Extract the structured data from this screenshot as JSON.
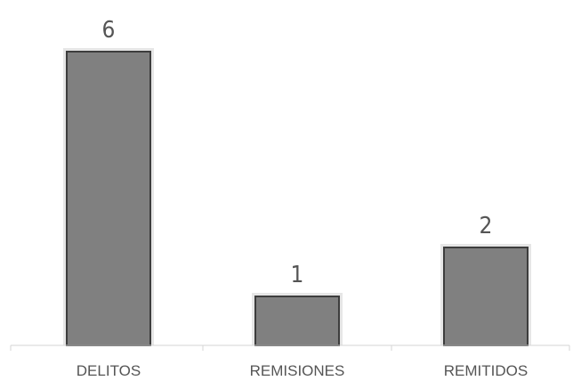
{
  "chart_data": {
    "type": "bar",
    "categories": [
      "DELITOS",
      "REMISIONES",
      "REMITIDOS"
    ],
    "values": [
      6,
      1,
      2
    ],
    "title": "",
    "xlabel": "",
    "ylabel": "",
    "ylim": [
      0,
      6
    ],
    "grid": false,
    "legend": "none",
    "data_labels": true,
    "colors": {
      "bar_fill": "#808080",
      "bar_border": "#3d3d3d",
      "label_text": "#555555",
      "axis": "#d4d4d4"
    }
  }
}
